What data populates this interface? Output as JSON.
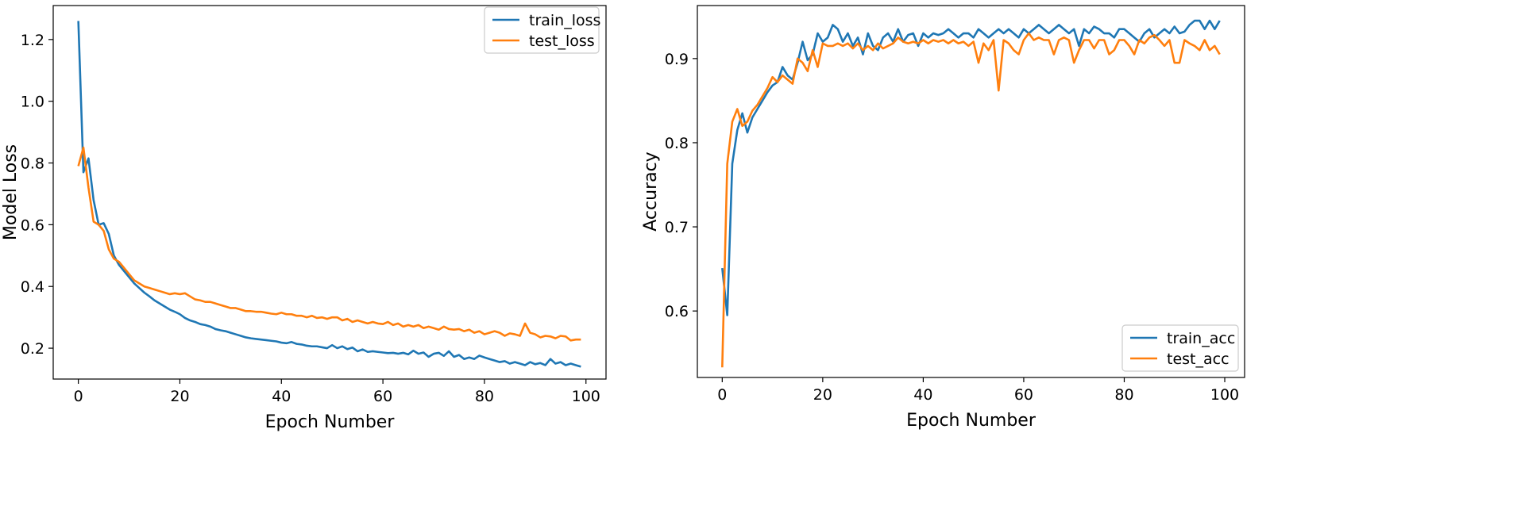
{
  "chart_data": [
    {
      "type": "line",
      "title": "",
      "xlabel": "Epoch Number",
      "ylabel": "Model Loss",
      "xlim": [
        -4.95,
        103.95
      ],
      "ylim": [
        0.1,
        1.31
      ],
      "xticks": [
        0,
        20,
        40,
        60,
        80,
        100
      ],
      "yticks": [
        0.2,
        0.4,
        0.6,
        0.8,
        1.0,
        1.2
      ],
      "ytick_decimals": 1,
      "legend_position": "top-right",
      "x_start": 0,
      "series": [
        {
          "name": "train_loss",
          "color": "#1f77b4",
          "values": [
            1.26,
            0.77,
            0.815,
            0.68,
            0.6,
            0.605,
            0.57,
            0.5,
            0.47,
            0.45,
            0.43,
            0.41,
            0.395,
            0.38,
            0.368,
            0.355,
            0.345,
            0.335,
            0.325,
            0.318,
            0.31,
            0.298,
            0.29,
            0.285,
            0.278,
            0.275,
            0.27,
            0.262,
            0.258,
            0.255,
            0.25,
            0.245,
            0.24,
            0.235,
            0.232,
            0.23,
            0.228,
            0.226,
            0.224,
            0.222,
            0.218,
            0.216,
            0.22,
            0.214,
            0.212,
            0.208,
            0.206,
            0.206,
            0.203,
            0.2,
            0.21,
            0.2,
            0.206,
            0.197,
            0.202,
            0.19,
            0.196,
            0.188,
            0.19,
            0.188,
            0.186,
            0.184,
            0.185,
            0.182,
            0.185,
            0.18,
            0.192,
            0.182,
            0.186,
            0.172,
            0.182,
            0.185,
            0.175,
            0.19,
            0.172,
            0.178,
            0.165,
            0.17,
            0.165,
            0.176,
            0.17,
            0.165,
            0.16,
            0.155,
            0.158,
            0.15,
            0.155,
            0.15,
            0.145,
            0.155,
            0.148,
            0.152,
            0.145,
            0.165,
            0.15,
            0.155,
            0.145,
            0.15,
            0.145,
            0.14
          ]
        },
        {
          "name": "test_loss",
          "color": "#ff7f0e",
          "values": [
            0.79,
            0.85,
            0.72,
            0.61,
            0.6,
            0.58,
            0.52,
            0.49,
            0.48,
            0.46,
            0.44,
            0.42,
            0.41,
            0.4,
            0.395,
            0.39,
            0.385,
            0.38,
            0.375,
            0.378,
            0.375,
            0.378,
            0.368,
            0.358,
            0.355,
            0.35,
            0.35,
            0.345,
            0.34,
            0.335,
            0.33,
            0.33,
            0.325,
            0.32,
            0.32,
            0.318,
            0.318,
            0.315,
            0.312,
            0.31,
            0.315,
            0.31,
            0.31,
            0.305,
            0.305,
            0.3,
            0.305,
            0.298,
            0.3,
            0.295,
            0.3,
            0.3,
            0.29,
            0.295,
            0.285,
            0.29,
            0.285,
            0.28,
            0.285,
            0.28,
            0.278,
            0.285,
            0.275,
            0.28,
            0.27,
            0.275,
            0.27,
            0.275,
            0.265,
            0.27,
            0.265,
            0.26,
            0.27,
            0.262,
            0.26,
            0.262,
            0.255,
            0.26,
            0.25,
            0.255,
            0.245,
            0.25,
            0.255,
            0.25,
            0.24,
            0.248,
            0.245,
            0.24,
            0.28,
            0.25,
            0.245,
            0.235,
            0.24,
            0.238,
            0.232,
            0.24,
            0.238,
            0.225,
            0.228,
            0.228
          ]
        }
      ]
    },
    {
      "type": "line",
      "title": "",
      "xlabel": "Epoch Number",
      "ylabel": "Accuracy",
      "xlim": [
        -4.95,
        103.95
      ],
      "ylim": [
        0.521,
        0.963
      ],
      "xticks": [
        0,
        20,
        40,
        60,
        80,
        100
      ],
      "yticks": [
        0.6,
        0.7,
        0.8,
        0.9
      ],
      "ytick_decimals": 1,
      "legend_position": "bottom-right",
      "x_start": 0,
      "series": [
        {
          "name": "train_acc",
          "color": "#1f77b4",
          "values": [
            0.651,
            0.595,
            0.775,
            0.815,
            0.835,
            0.812,
            0.83,
            0.84,
            0.85,
            0.86,
            0.868,
            0.872,
            0.89,
            0.88,
            0.875,
            0.895,
            0.92,
            0.898,
            0.905,
            0.93,
            0.92,
            0.925,
            0.94,
            0.935,
            0.92,
            0.93,
            0.915,
            0.925,
            0.905,
            0.93,
            0.915,
            0.91,
            0.925,
            0.93,
            0.92,
            0.935,
            0.92,
            0.928,
            0.93,
            0.915,
            0.93,
            0.925,
            0.93,
            0.928,
            0.93,
            0.935,
            0.93,
            0.925,
            0.93,
            0.93,
            0.925,
            0.935,
            0.93,
            0.925,
            0.93,
            0.935,
            0.93,
            0.935,
            0.93,
            0.925,
            0.935,
            0.93,
            0.935,
            0.94,
            0.935,
            0.93,
            0.935,
            0.94,
            0.935,
            0.93,
            0.935,
            0.915,
            0.935,
            0.93,
            0.938,
            0.935,
            0.93,
            0.93,
            0.925,
            0.935,
            0.935,
            0.93,
            0.925,
            0.92,
            0.93,
            0.935,
            0.925,
            0.93,
            0.935,
            0.93,
            0.938,
            0.93,
            0.932,
            0.94,
            0.945,
            0.945,
            0.935,
            0.945,
            0.935,
            0.945
          ]
        },
        {
          "name": "test_acc",
          "color": "#ff7f0e",
          "values": [
            0.533,
            0.775,
            0.825,
            0.84,
            0.82,
            0.825,
            0.838,
            0.845,
            0.855,
            0.865,
            0.878,
            0.872,
            0.88,
            0.875,
            0.87,
            0.9,
            0.895,
            0.885,
            0.91,
            0.89,
            0.918,
            0.915,
            0.915,
            0.918,
            0.915,
            0.918,
            0.912,
            0.918,
            0.91,
            0.915,
            0.91,
            0.918,
            0.912,
            0.915,
            0.918,
            0.925,
            0.92,
            0.918,
            0.92,
            0.918,
            0.922,
            0.918,
            0.922,
            0.92,
            0.922,
            0.918,
            0.922,
            0.918,
            0.92,
            0.915,
            0.92,
            0.895,
            0.918,
            0.91,
            0.922,
            0.862,
            0.922,
            0.918,
            0.91,
            0.905,
            0.922,
            0.93,
            0.922,
            0.925,
            0.922,
            0.922,
            0.905,
            0.922,
            0.925,
            0.922,
            0.895,
            0.91,
            0.922,
            0.922,
            0.912,
            0.922,
            0.922,
            0.905,
            0.91,
            0.922,
            0.922,
            0.915,
            0.905,
            0.922,
            0.918,
            0.925,
            0.928,
            0.922,
            0.915,
            0.922,
            0.895,
            0.895,
            0.922,
            0.918,
            0.915,
            0.91,
            0.922,
            0.91,
            0.915,
            0.905
          ]
        }
      ]
    }
  ]
}
